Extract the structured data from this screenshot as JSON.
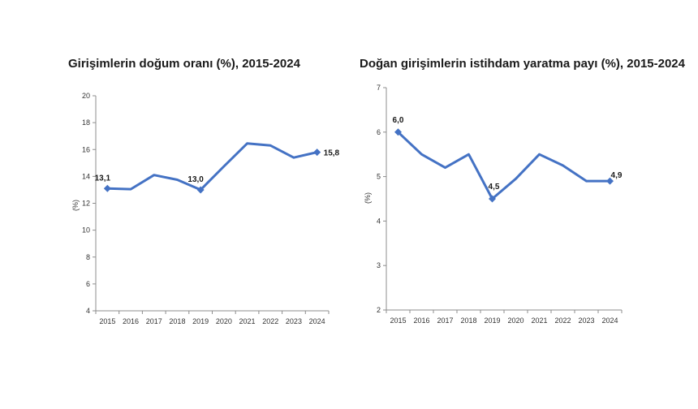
{
  "chart_data": [
    {
      "type": "line",
      "title": "Girişimlerin doğum oranı (%), 2015-2024",
      "xlabel": "",
      "ylabel": "(%)",
      "categories": [
        "2015",
        "2016",
        "2017",
        "2018",
        "2019",
        "2020",
        "2021",
        "2022",
        "2023",
        "2024"
      ],
      "values": [
        13.1,
        13.05,
        14.1,
        13.75,
        13.0,
        14.75,
        16.45,
        16.3,
        15.4,
        15.8
      ],
      "ylim": [
        4,
        20
      ],
      "yticks": [
        "4",
        "6",
        "8",
        "10",
        "12",
        "14",
        "16",
        "18",
        "20"
      ],
      "data_labels": [
        {
          "index": 0,
          "text": "13,1"
        },
        {
          "index": 4,
          "text": "13,0"
        },
        {
          "index": 9,
          "text": "15,8"
        }
      ],
      "line_color": "#4472C4",
      "grid": false
    },
    {
      "type": "line",
      "title": "Doğan girişimlerin istihdam yaratma payı (%), 2015-2024",
      "xlabel": "",
      "ylabel": "(%)",
      "categories": [
        "2015",
        "2016",
        "2017",
        "2018",
        "2019",
        "2020",
        "2021",
        "2022",
        "2023",
        "2024"
      ],
      "values": [
        6.0,
        5.5,
        5.2,
        5.5,
        4.5,
        4.95,
        5.5,
        5.25,
        4.9,
        4.9
      ],
      "ylim": [
        2,
        7
      ],
      "yticks": [
        "2",
        "3",
        "4",
        "5",
        "6",
        "7"
      ],
      "data_labels": [
        {
          "index": 0,
          "text": "6,0"
        },
        {
          "index": 4,
          "text": "4,5"
        },
        {
          "index": 9,
          "text": "4,9"
        }
      ],
      "line_color": "#4472C4",
      "grid": false
    }
  ]
}
